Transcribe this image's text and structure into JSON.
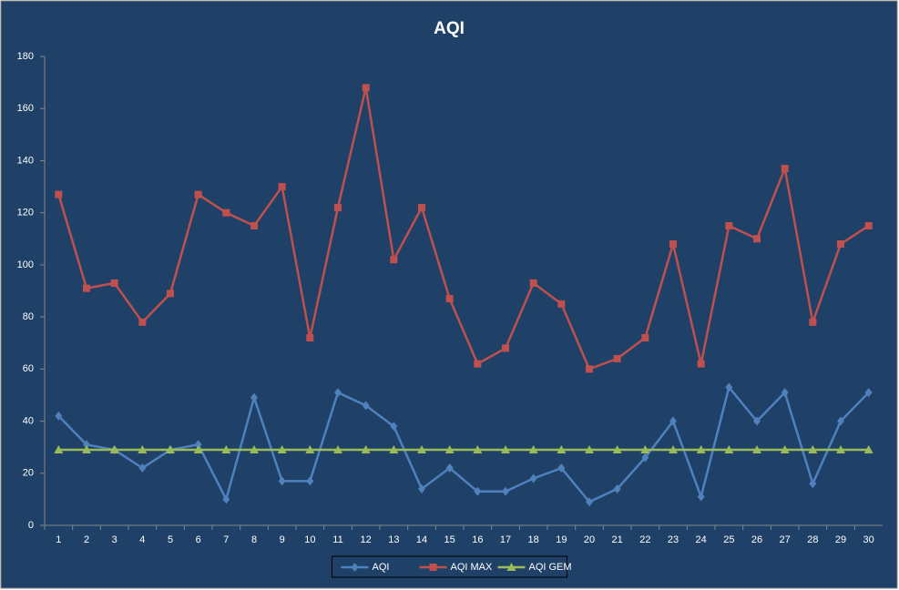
{
  "chart_data": {
    "type": "line",
    "title": "AQI",
    "categories": [
      "1",
      "2",
      "3",
      "4",
      "5",
      "6",
      "7",
      "8",
      "9",
      "10",
      "11",
      "12",
      "13",
      "14",
      "15",
      "16",
      "17",
      "18",
      "19",
      "20",
      "21",
      "22",
      "23",
      "24",
      "25",
      "26",
      "27",
      "28",
      "29",
      "30"
    ],
    "series": [
      {
        "name": "AQI",
        "color": "#4f81bd",
        "marker": "diamond",
        "values": [
          42,
          31,
          29,
          22,
          29,
          31,
          10,
          49,
          17,
          17,
          51,
          46,
          38,
          14,
          22,
          13,
          13,
          18,
          22,
          9,
          14,
          26,
          40,
          11,
          53,
          40,
          51,
          16,
          40,
          51
        ]
      },
      {
        "name": "AQI MAX",
        "color": "#c0504d",
        "marker": "square",
        "values": [
          127,
          91,
          93,
          78,
          89,
          127,
          120,
          115,
          130,
          72,
          122,
          168,
          102,
          122,
          87,
          62,
          68,
          93,
          85,
          60,
          64,
          72,
          108,
          62,
          115,
          110,
          137,
          78,
          108,
          115
        ]
      },
      {
        "name": "AQI GEM",
        "color": "#9bbb59",
        "marker": "triangle",
        "values": [
          29,
          29,
          29,
          29,
          29,
          29,
          29,
          29,
          29,
          29,
          29,
          29,
          29,
          29,
          29,
          29,
          29,
          29,
          29,
          29,
          29,
          29,
          29,
          29,
          29,
          29,
          29,
          29,
          29,
          29
        ]
      }
    ],
    "ylim": [
      0,
      180
    ],
    "yticks": [
      0,
      20,
      40,
      60,
      80,
      100,
      120,
      140,
      160,
      180
    ],
    "grid": false,
    "legend": "bottom"
  }
}
